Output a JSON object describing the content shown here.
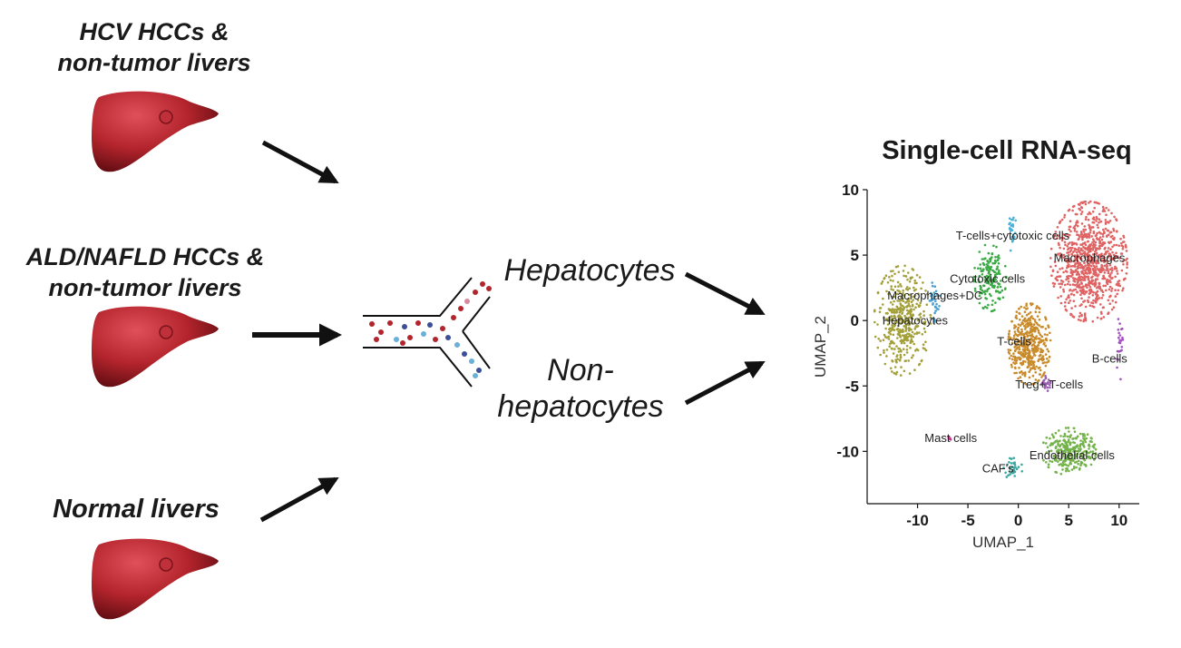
{
  "sources": [
    {
      "lines": [
        "HCV HCCs &",
        "non-tumor livers"
      ]
    },
    {
      "lines": [
        "ALD/NAFLD HCCs &",
        "non-tumor livers"
      ]
    },
    {
      "lines": [
        "Normal livers"
      ]
    }
  ],
  "fractions": {
    "hepatocytes": [
      "Hepatocytes"
    ],
    "non_hepatocytes": [
      "Non-",
      "hepatocytes"
    ]
  },
  "umap": {
    "title": "Single-cell RNA-seq",
    "xlabel": "UMAP_1",
    "ylabel": "UMAP_2"
  },
  "colors": {
    "liver": "#b3242c",
    "arrow": "#111111"
  },
  "chart_data": {
    "type": "scatter",
    "title": "Single-cell RNA-seq",
    "xlabel": "UMAP_1",
    "ylabel": "UMAP_2",
    "xlim": [
      -15,
      12
    ],
    "ylim": [
      -14,
      10
    ],
    "xticks": [
      -10,
      -5,
      0,
      5,
      10
    ],
    "yticks": [
      -10,
      -5,
      0,
      5,
      10
    ],
    "grid": false,
    "clusters": [
      {
        "label": "Hepatocytes",
        "color": "#a3a03a",
        "cx": -11.5,
        "cy": 0.0,
        "rx": 2.8,
        "ry": 4.2,
        "n": 420,
        "label_x": -13.5,
        "label_y": -0.3
      },
      {
        "label": "Macrophages+DC",
        "color": "#4a9fd0",
        "cx": -8.3,
        "cy": 1.5,
        "rx": 0.5,
        "ry": 1.6,
        "n": 35,
        "label_x": -13.0,
        "label_y": 1.6
      },
      {
        "label": "T-cells+cytotoxic cells",
        "color": "#4ab0d6",
        "cx": -0.6,
        "cy": 6.8,
        "rx": 0.4,
        "ry": 1.6,
        "n": 30,
        "label_x": -6.2,
        "label_y": 6.2
      },
      {
        "label": "Cytotoxic cells",
        "color": "#3aaa45",
        "cx": -2.8,
        "cy": 3.3,
        "rx": 1.6,
        "ry": 2.6,
        "n": 170,
        "label_x": -6.8,
        "label_y": 2.9
      },
      {
        "label": "Macrophages",
        "color": "#e06363",
        "cx": 7.0,
        "cy": 4.5,
        "rx": 3.8,
        "ry": 4.6,
        "n": 850,
        "label_x": 3.5,
        "label_y": 4.5
      },
      {
        "label": "T-cells",
        "color": "#c98a2a",
        "cx": 1.1,
        "cy": -1.8,
        "rx": 2.1,
        "ry": 3.1,
        "n": 450,
        "label_x": -2.1,
        "label_y": -1.9
      },
      {
        "label": "Treg+ T-cells",
        "color": "#9a5fb0",
        "cx": 2.8,
        "cy": -4.8,
        "rx": 0.6,
        "ry": 0.6,
        "n": 25,
        "label_x": -0.3,
        "label_y": -5.2
      },
      {
        "label": "B-cells",
        "color": "#a24fc0",
        "cx": 10.1,
        "cy": -2.0,
        "rx": 0.4,
        "ry": 2.5,
        "n": 25,
        "label_x": 7.3,
        "label_y": -3.2
      },
      {
        "label": "Mast cells",
        "color": "#c2358d",
        "cx": -6.8,
        "cy": -9.0,
        "rx": 0.15,
        "ry": 0.15,
        "n": 4,
        "label_x": -9.3,
        "label_y": -9.3
      },
      {
        "label": "CAF's",
        "color": "#3aa8a0",
        "cx": -0.6,
        "cy": -11.3,
        "rx": 1.0,
        "ry": 0.8,
        "n": 35,
        "label_x": -3.6,
        "label_y": -11.6
      },
      {
        "label": "Endothelial cells",
        "color": "#74b24a",
        "cx": 5.0,
        "cy": -10.0,
        "rx": 2.7,
        "ry": 1.8,
        "n": 300,
        "label_x": 1.1,
        "label_y": -10.6
      }
    ]
  }
}
